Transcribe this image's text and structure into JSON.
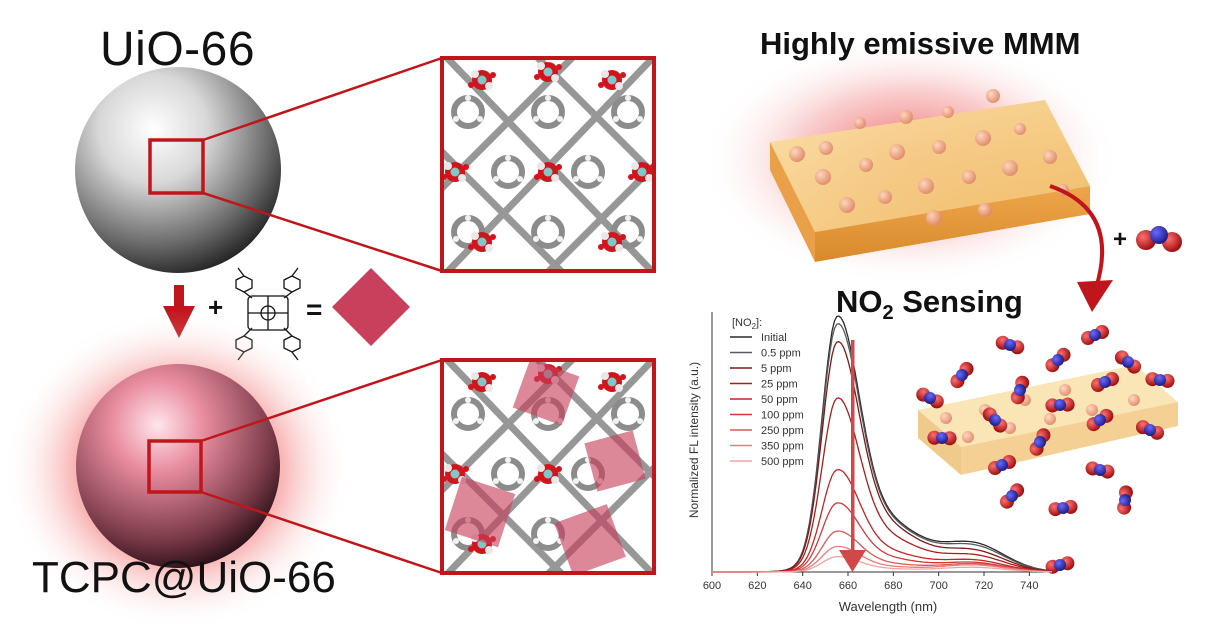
{
  "labels": {
    "top_material": "UiO-66",
    "bottom_material": "TCPC@UiO-66",
    "membrane_title": "Highly emissive MMM",
    "sensing_title_main": "NO",
    "sensing_title_sub": "2",
    "sensing_title_rest": " Sensing",
    "plus": "+",
    "equals": "=",
    "plus_no2": "+"
  },
  "colors": {
    "frame_red": "#c0161b",
    "marker_pink": "#c8405c",
    "oxygen_red": "#d4141c",
    "zirconium_cyan": "#7ec8c8",
    "carbon_gray": "#8c8c8c",
    "membrane_orange": "#f4c97e"
  },
  "chart_data": {
    "type": "line",
    "xlabel": "Wavelength (nm)",
    "ylabel": "Normalized FL intensity (a.u.)",
    "xlim": [
      600,
      750
    ],
    "xticks": [
      600,
      620,
      640,
      660,
      680,
      700,
      720,
      740
    ],
    "legend_title_main": "[NO",
    "legend_title_sub": "2",
    "legend_title_end": "]:",
    "legend_position": "top-left",
    "series": [
      {
        "name": "Initial",
        "peak": 1.0,
        "tail": 0.12,
        "color": "#2a2a2a"
      },
      {
        "name": "0.5 ppm",
        "peak": 0.97,
        "tail": 0.11,
        "color": "#5a5a5a"
      },
      {
        "name": "5 ppm",
        "peak": 0.9,
        "tail": 0.09,
        "color": "#7a1a1a"
      },
      {
        "name": "25 ppm",
        "peak": 0.68,
        "tail": 0.07,
        "color": "#a81e1e"
      },
      {
        "name": "50 ppm",
        "peak": 0.4,
        "tail": 0.05,
        "color": "#c62424"
      },
      {
        "name": "100 ppm",
        "peak": 0.27,
        "tail": 0.04,
        "color": "#d23a3a"
      },
      {
        "name": "250 ppm",
        "peak": 0.16,
        "tail": 0.035,
        "color": "#dc5a5a"
      },
      {
        "name": "350 ppm",
        "peak": 0.1,
        "tail": 0.03,
        "color": "#e67d7d"
      },
      {
        "name": "500 ppm",
        "peak": 0.06,
        "tail": 0.02,
        "color": "#efa3a3"
      }
    ],
    "peak_wavelength": 655,
    "secondary_peak_wavelength": 715
  }
}
